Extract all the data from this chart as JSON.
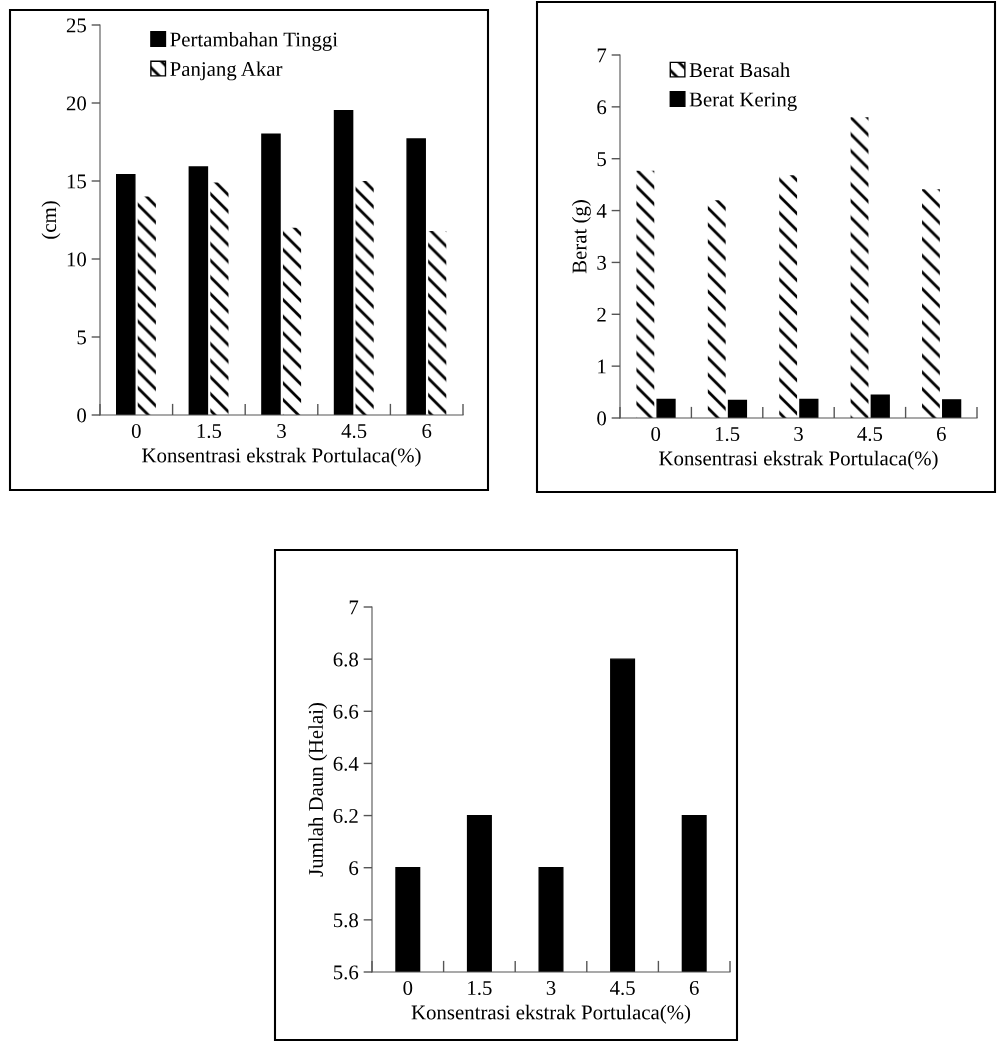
{
  "chart_data": [
    {
      "type": "bar",
      "xlabel": "Konsentrasi ekstrak Portulaca(%)",
      "ylabel": "(cm)",
      "categories": [
        "0",
        "1.5",
        "3",
        "4.5",
        "6"
      ],
      "series": [
        {
          "name": "Pertambahan Tinggi",
          "color": "#000000",
          "values": [
            15.4,
            15.9,
            18.0,
            19.5,
            17.7
          ]
        },
        {
          "name": "Panjang Akar",
          "color": "#ffffff",
          "values": [
            14.0,
            14.9,
            12.0,
            15.0,
            11.8
          ]
        }
      ],
      "ylim": [
        0,
        25
      ],
      "yticks": [
        0,
        5,
        10,
        15,
        20,
        25
      ],
      "grid": false,
      "legend": "top left"
    },
    {
      "type": "bar",
      "xlabel": "Konsentrasi ekstrak Portulaca(%)",
      "ylabel": "Berat (g)",
      "categories": [
        "0",
        "1.5",
        "3",
        "4.5",
        "6"
      ],
      "series": [
        {
          "name": "Berat Basah",
          "color": "#ffffff",
          "values": [
            4.77,
            4.2,
            4.68,
            5.8,
            4.41
          ]
        },
        {
          "name": "Berat Kering",
          "color": "#000000",
          "values": [
            0.36,
            0.34,
            0.36,
            0.44,
            0.35
          ]
        }
      ],
      "ylim": [
        0,
        7
      ],
      "yticks": [
        0,
        1,
        2,
        3,
        4,
        5,
        6,
        7
      ],
      "grid": false,
      "legend": "top left"
    },
    {
      "type": "bar",
      "xlabel": "Konsentrasi ekstrak Portulaca(%)",
      "ylabel": "Jumlah Daun (Helai)",
      "categories": [
        "0",
        "1.5",
        "3",
        "4.5",
        "6"
      ],
      "series": [
        {
          "color": "#000000",
          "values": [
            6.0,
            6.2,
            6.0,
            6.8,
            6.2
          ]
        }
      ],
      "ylim": [
        5.6,
        7
      ],
      "yticks": [
        5.6,
        5.8,
        6,
        6.2,
        6.4,
        6.6,
        6.8,
        7
      ],
      "grid": false,
      "legend": false
    }
  ]
}
